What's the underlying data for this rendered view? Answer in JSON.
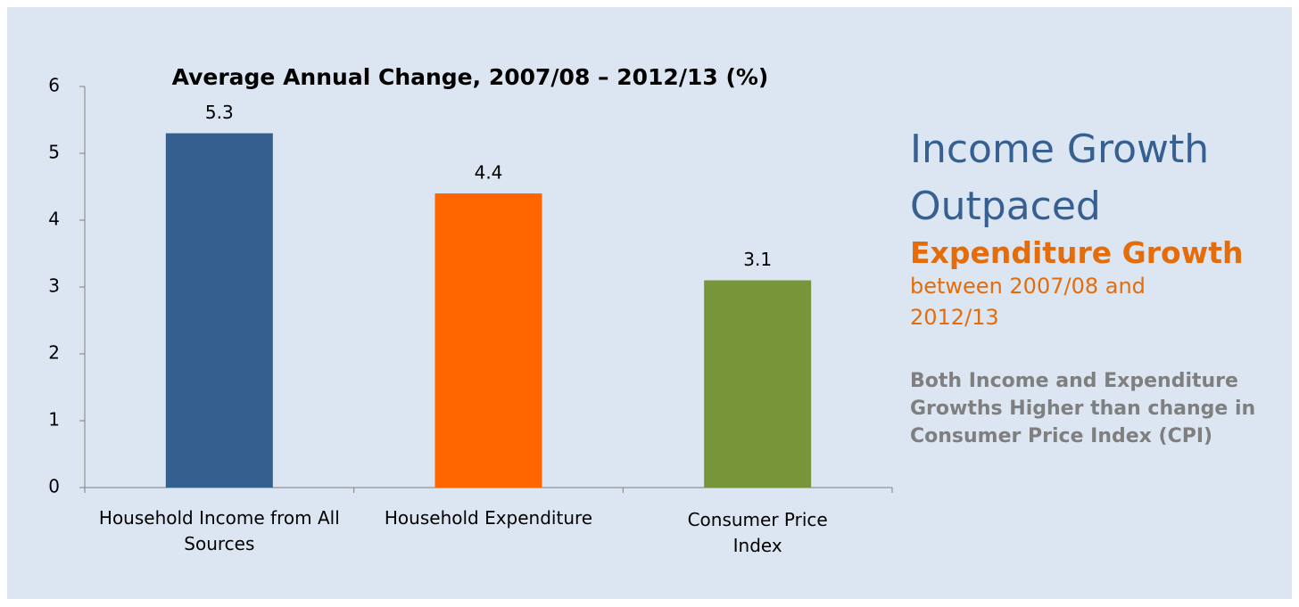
{
  "chart_data": {
    "type": "bar",
    "title": "Average Annual Change, 2007/08 – 2012/13 (%)",
    "categories": [
      "Household Income from All Sources",
      "Household Expenditure",
      "Consumer Price Index"
    ],
    "values": [
      5.3,
      4.4,
      3.1
    ],
    "colors": [
      "#355f8f",
      "#ff6600",
      "#77963a"
    ],
    "ylim": [
      0,
      6
    ],
    "yticks": [
      0,
      1,
      2,
      3,
      4,
      5,
      6
    ],
    "grid": false
  },
  "side_text": {
    "headline": "Income Growth Outpaced",
    "subheadline": "Expenditure Growth",
    "period": "between 2007/08 and 2012/13",
    "note": "Both Income and Expenditure Growths Higher than change in Consumer Price Index (CPI)"
  }
}
